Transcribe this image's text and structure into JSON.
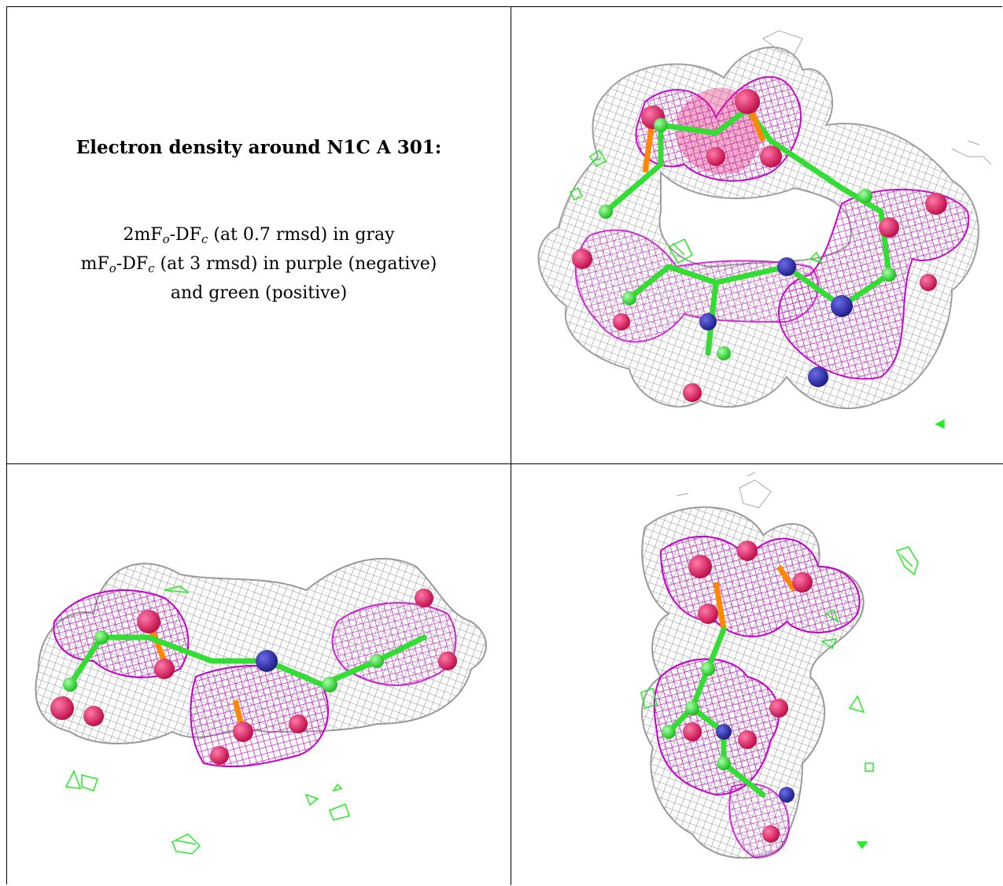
{
  "caption": {
    "title": "Electron density around N1C A 301:",
    "line1_pre": "2mF",
    "line1_sub1": "o",
    "line1_mid": "-DF",
    "line1_sub2": "c",
    "line1_post": " (at 0.7 rmsd) in gray",
    "line2_pre": "mF",
    "line2_sub1": "o",
    "line2_mid": "-DF",
    "line2_sub2": "c",
    "line2_post": " (at 3 rmsd) in purple (negative)",
    "line3": "and green (positive)"
  },
  "colors": {
    "mesh_gray": "#9a9a9a",
    "mesh_purple": "#cc00cc",
    "mesh_green": "#22ee22",
    "atom_oxygen": "#e0105a",
    "atom_nitrogen": "#2a2aa0",
    "atom_carbon": "#33dd33",
    "atom_phosphorus": "#ff8800"
  },
  "views": [
    {
      "name": "view-top-right"
    },
    {
      "name": "view-bottom-left"
    },
    {
      "name": "view-bottom-right"
    }
  ]
}
